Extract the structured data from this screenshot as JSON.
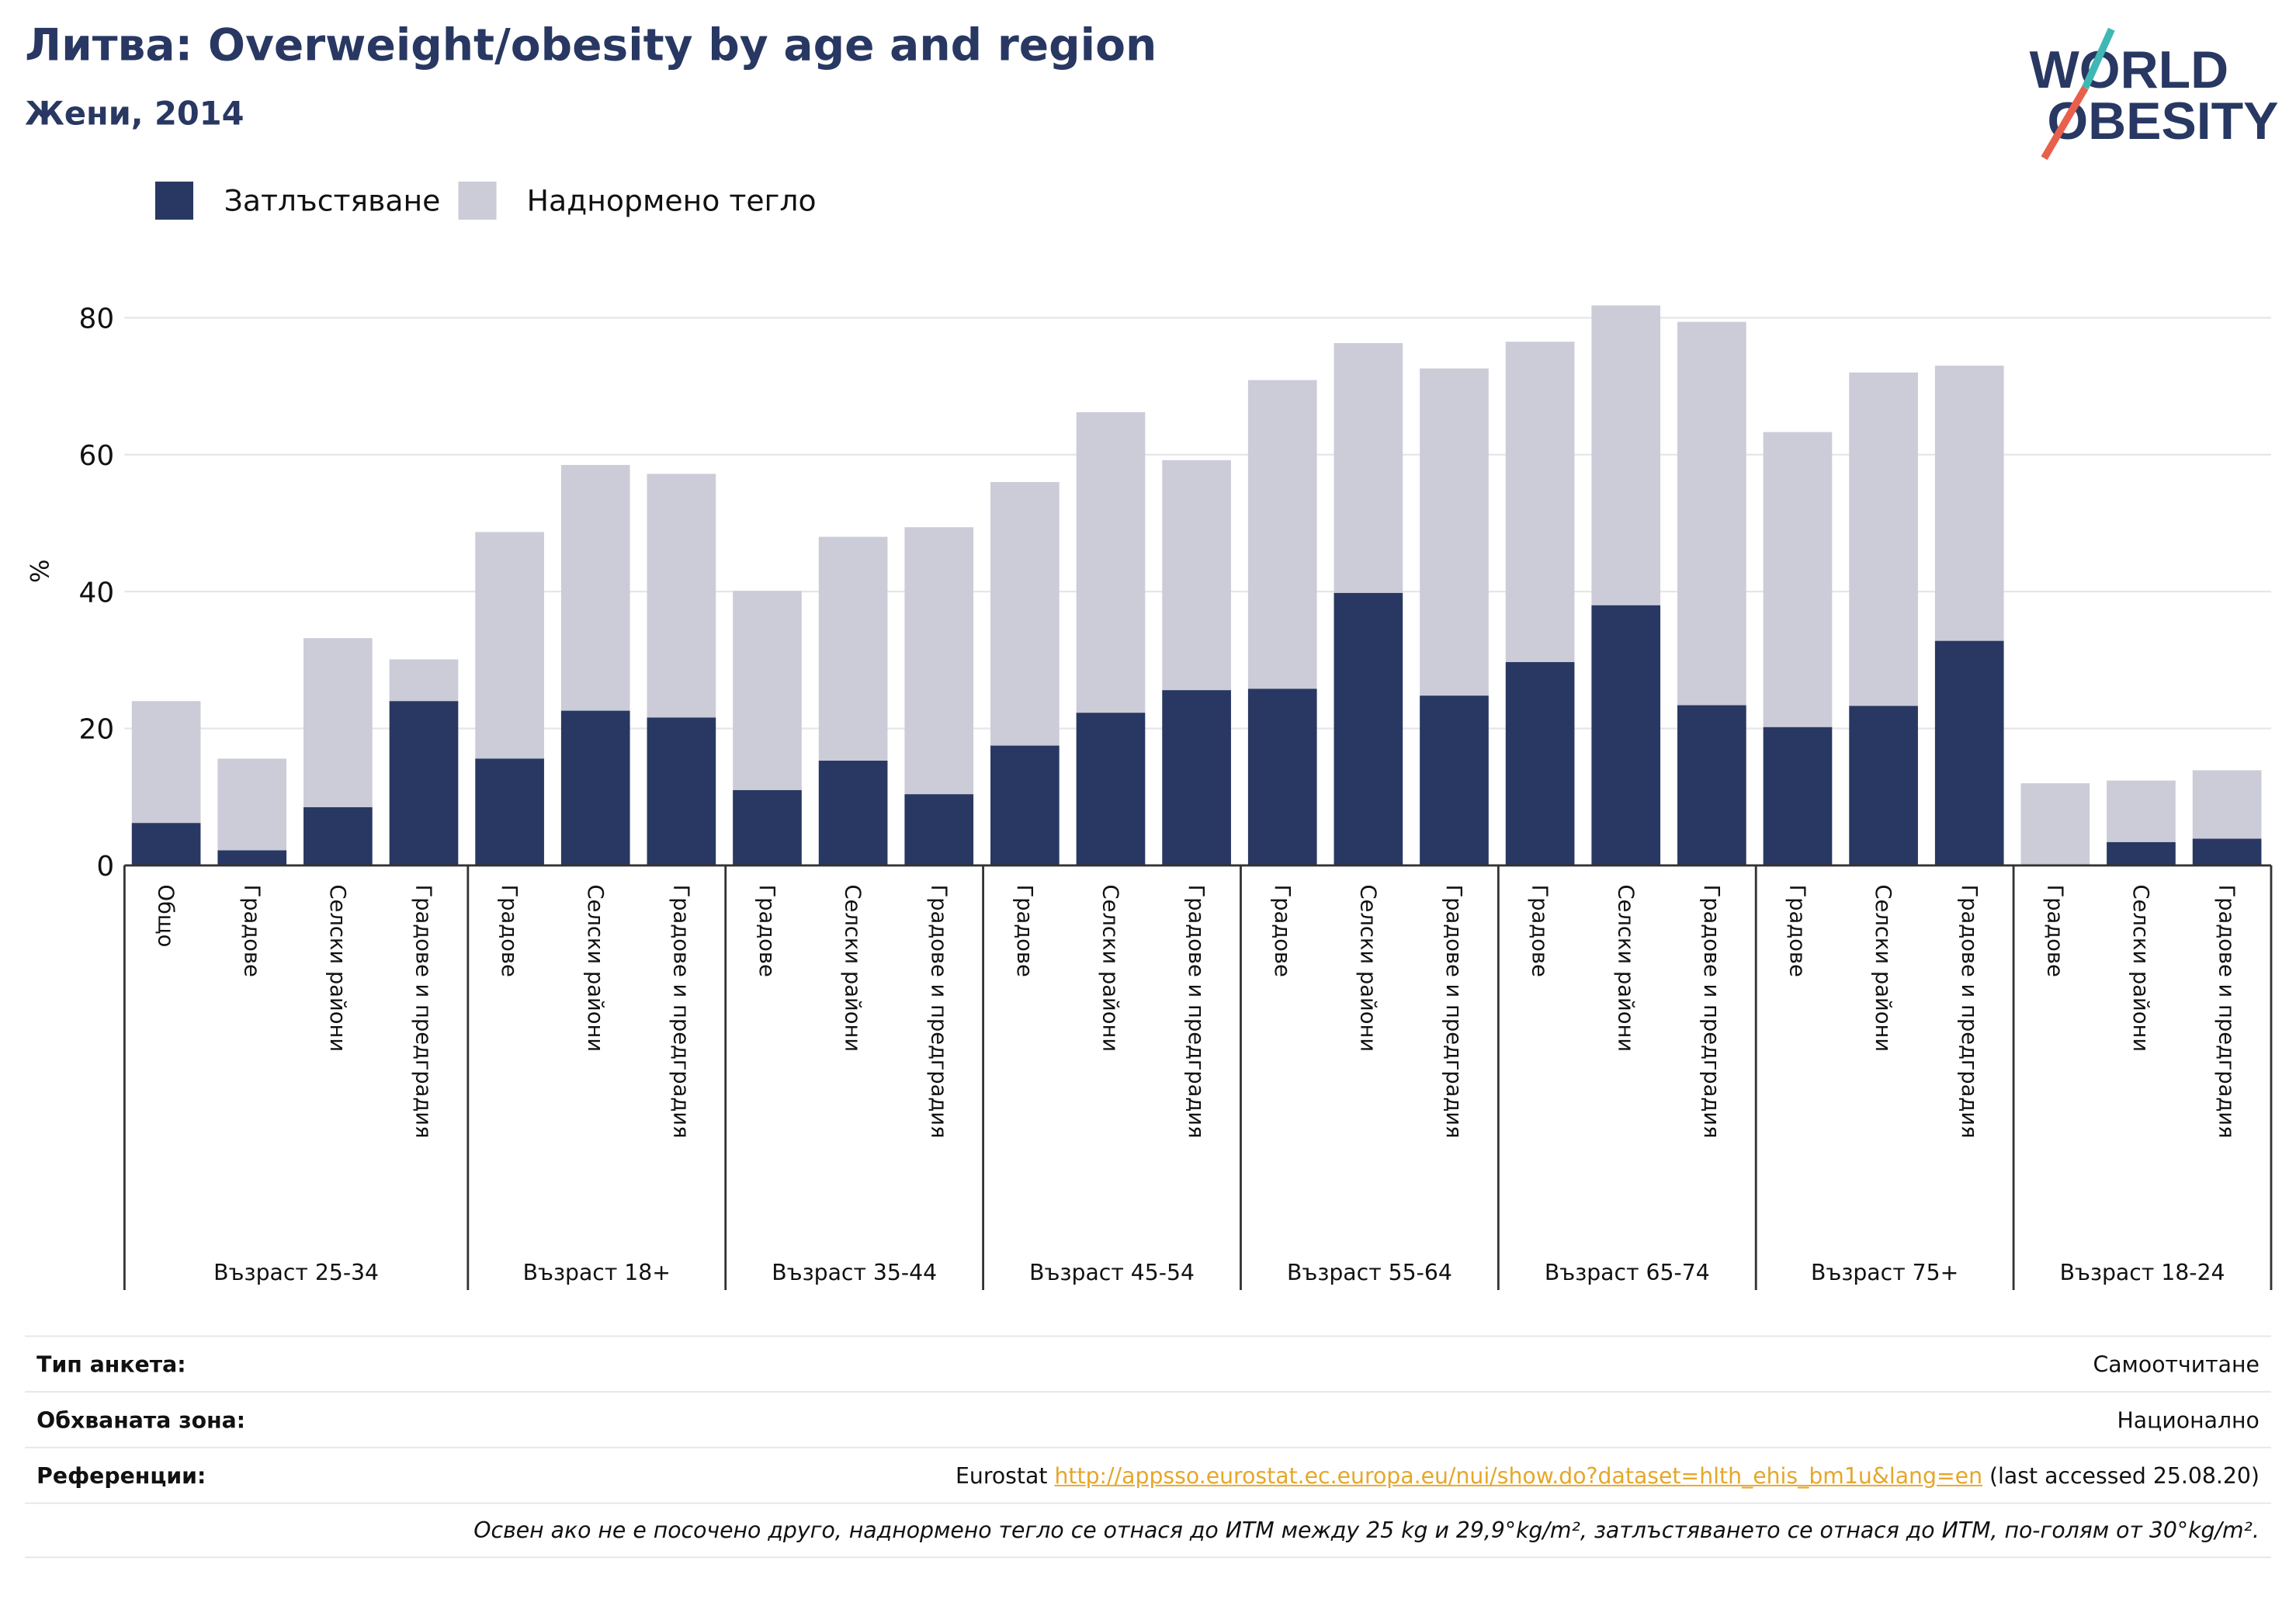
{
  "header": {
    "title": "Литва: Overweight/obesity by age and region",
    "subtitle": "Жени, 2014"
  },
  "logo": {
    "line1": "WORLD",
    "line2": "OBESITY",
    "accent_teal": "#3fb8b5",
    "accent_red": "#e8604c"
  },
  "colors": {
    "obesity": "#283862",
    "overweight": "#cbccd8",
    "grid": "#e6e6ea",
    "axis": "#333333"
  },
  "chart_data": {
    "type": "bar",
    "stacked": true,
    "ylabel": "%",
    "ylim": [
      0,
      90
    ],
    "yticks": [
      0,
      20,
      40,
      60,
      80
    ],
    "grid": true,
    "legend_position": "top-left",
    "series": [
      {
        "name": "Затлъстяване",
        "color": "#283862",
        "values": [
          6.2,
          2.2,
          8.5,
          24.0,
          15.6,
          22.6,
          21.6,
          11.0,
          15.3,
          10.4,
          17.5,
          22.3,
          25.6,
          25.8,
          39.8,
          24.8,
          29.7,
          38.0,
          23.4,
          20.2,
          23.3,
          32.8,
          0.0,
          3.4,
          3.9
        ]
      },
      {
        "name": "Наднормено тегло",
        "color": "#cbccd8",
        "totals": [
          24.0,
          15.6,
          33.2,
          30.1,
          48.7,
          58.5,
          57.2,
          40.1,
          48.0,
          49.4,
          56.0,
          66.2,
          59.2,
          70.9,
          76.3,
          72.6,
          76.5,
          81.8,
          79.4,
          63.3,
          72.0,
          73.0,
          12.0,
          12.4,
          13.9
        ]
      }
    ],
    "groups": [
      {
        "label": "Възраст 25-34",
        "categories": [
          "Общо",
          "Градове",
          "Селски райони",
          "Градове и предградия"
        ]
      },
      {
        "label": "Възраст 18+",
        "categories": [
          "Градове",
          "Селски райони",
          "Градове и предградия"
        ]
      },
      {
        "label": "Възраст 35-44",
        "categories": [
          "Градове",
          "Селски райони",
          "Градове и предградия"
        ]
      },
      {
        "label": "Възраст 45-54",
        "categories": [
          "Градове",
          "Селски райони",
          "Градове и предградия"
        ]
      },
      {
        "label": "Възраст 55-64",
        "categories": [
          "Градове",
          "Селски райони",
          "Градове и предградия"
        ]
      },
      {
        "label": "Възраст 65-74",
        "categories": [
          "Градове",
          "Селски райони",
          "Градове и предградия"
        ]
      },
      {
        "label": "Възраст 75+",
        "categories": [
          "Градове",
          "Селски райони",
          "Градове и предградия"
        ]
      },
      {
        "label": "Възраст 18-24",
        "categories": [
          "Градове",
          "Селски райони",
          "Градове и предградия"
        ]
      }
    ]
  },
  "info": {
    "survey_label": "Тип анкета:",
    "survey_value": "Самоотчитане",
    "coverage_label": "Обхваната зона:",
    "coverage_value": "Национално",
    "refs_label": "Референции:",
    "refs_prefix": "Eurostat ",
    "refs_link": "http://appsso.eurostat.ec.europa.eu/nui/show.do?dataset=hlth_ehis_bm1u&lang=en",
    "refs_suffix": " (last accessed 25.08.20)",
    "note": "Освен ако не е посочено друго, наднормено тегло се отнася до ИТМ между 25 kg и 29,9°kg/m², затлъстяването се отнася до ИТМ, по-голям от 30°kg/m²."
  }
}
